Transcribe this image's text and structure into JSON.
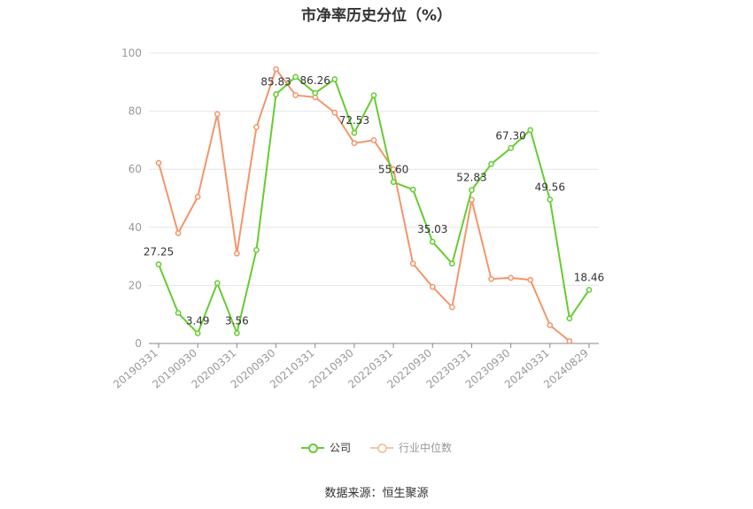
{
  "title": "市净率历史分位（%）",
  "source": "数据来源：恒生聚源",
  "chart_data": {
    "type": "line",
    "ylim": [
      0,
      100
    ],
    "yticks": [
      0,
      20,
      40,
      60,
      80,
      100
    ],
    "grid": true,
    "legend_position": "bottom",
    "x": [
      "20190331",
      "20190630",
      "20190930",
      "20191231",
      "20200331",
      "20200630",
      "20200930",
      "20201231",
      "20210331",
      "20210630",
      "20210930",
      "20211231",
      "20220331",
      "20220630",
      "20220930",
      "20221231",
      "20230331",
      "20230630",
      "20230930",
      "20231231",
      "20240331",
      "20240630",
      "20240829"
    ],
    "xtick_labels": [
      "20190331",
      "20190930",
      "20200331",
      "20200930",
      "20210331",
      "20210930",
      "20220331",
      "20220930",
      "20230331",
      "20230930",
      "20240331",
      "20240829"
    ],
    "series": [
      {
        "name": "公司",
        "color": "#66cc33",
        "values": [
          27.25,
          10.5,
          3.49,
          20.8,
          3.56,
          32.2,
          85.83,
          91.8,
          86.26,
          91.0,
          72.53,
          85.5,
          55.6,
          53.0,
          35.03,
          27.5,
          52.83,
          61.8,
          67.3,
          73.5,
          49.56,
          8.6,
          18.46
        ],
        "labels": [
          "27.25",
          "",
          "3.49",
          "",
          "3.56",
          "",
          "85.83",
          "",
          "86.26",
          "",
          "72.53",
          "",
          "55.60",
          "",
          "35.03",
          "",
          "52.83",
          "",
          "67.30",
          "",
          "49.56",
          "",
          "18.46"
        ]
      },
      {
        "name": "行业中位数",
        "color": "#f4956a",
        "values": [
          62.2,
          38.0,
          50.5,
          79.0,
          31.0,
          74.5,
          94.5,
          85.5,
          84.8,
          79.5,
          69.0,
          70.0,
          60.0,
          27.5,
          19.5,
          12.5,
          49.5,
          22.2,
          22.6,
          21.9,
          6.3,
          0.8,
          null
        ]
      }
    ]
  }
}
